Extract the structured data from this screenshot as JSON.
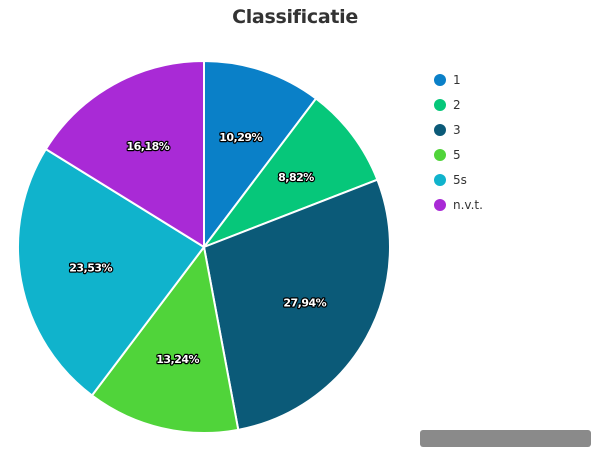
{
  "chart_data": {
    "type": "pie",
    "title": "Classificatie",
    "legend_position": "right",
    "slices": [
      {
        "name": "1",
        "value": 10.29,
        "label": "10,29%",
        "color": "#0a80c8"
      },
      {
        "name": "2",
        "value": 8.82,
        "label": "8,82%",
        "color": "#06c77a"
      },
      {
        "name": "3",
        "value": 27.94,
        "label": "27,94%",
        "color": "#0b5a78"
      },
      {
        "name": "5",
        "value": 13.24,
        "label": "13,24%",
        "color": "#50d43a"
      },
      {
        "name": "5s",
        "value": 23.53,
        "label": "23,53%",
        "color": "#10b3cc"
      },
      {
        "name": "n.v.t.",
        "value": 16.18,
        "label": "16,18%",
        "color": "#a92ad6"
      }
    ]
  }
}
